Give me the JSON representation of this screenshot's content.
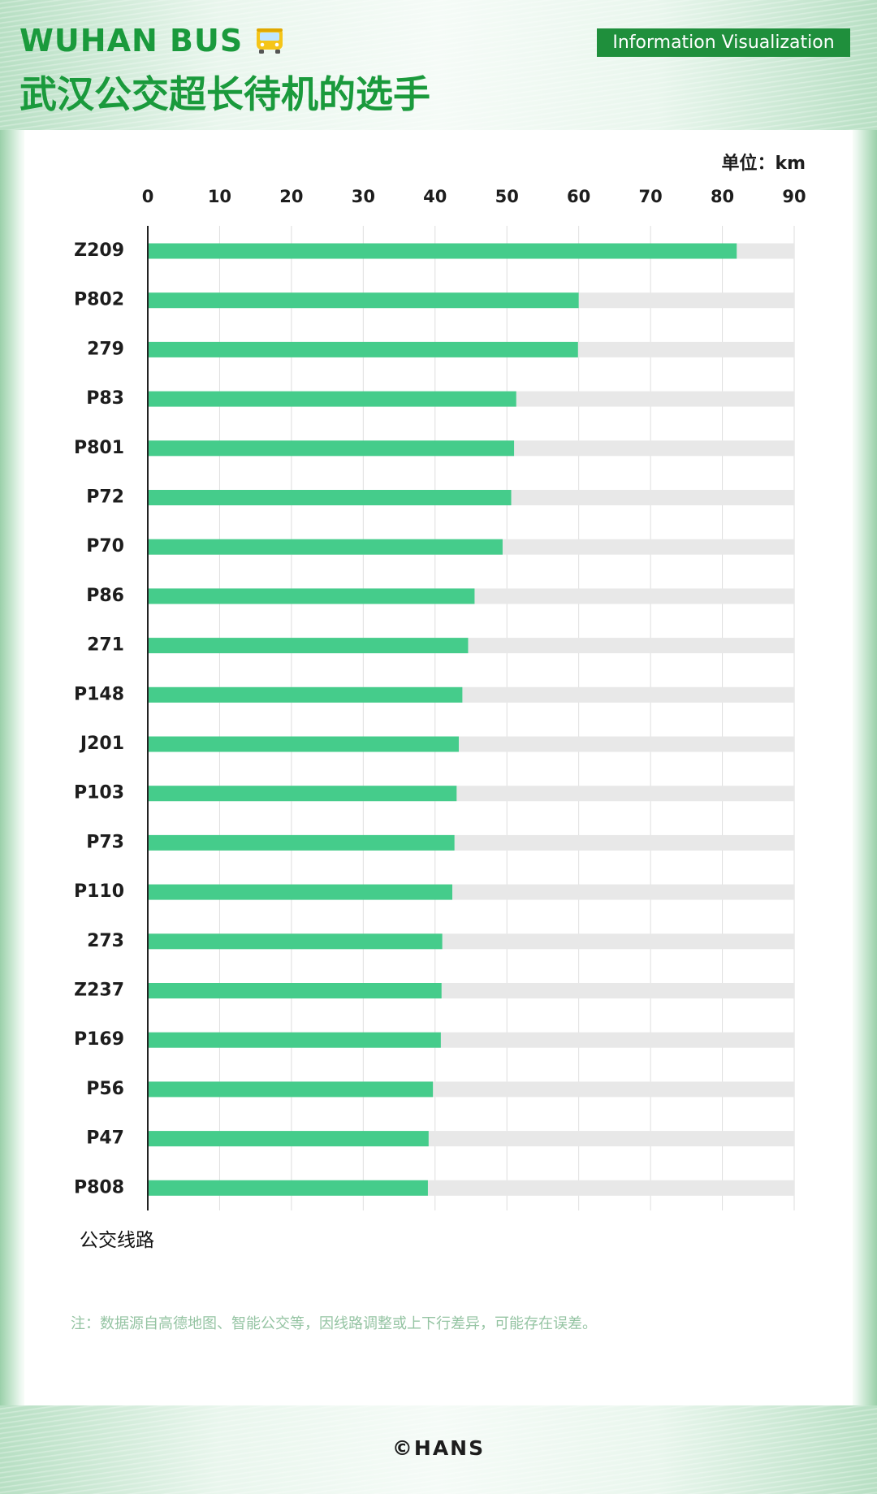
{
  "header": {
    "brand": "WUHAN BUS",
    "title": "武汉公交超长待机的选手",
    "tag": "Information Visualization"
  },
  "chart_data": {
    "type": "bar",
    "orientation": "horizontal",
    "unit_label": "单位：km",
    "ylabel": "公交线路",
    "xlim": [
      0,
      90
    ],
    "x_ticks": [
      0,
      10,
      20,
      30,
      40,
      50,
      60,
      70,
      80,
      90
    ],
    "grid": true,
    "categories": [
      "Z209",
      "P802",
      "279",
      "P83",
      "P801",
      "P72",
      "P70",
      "P86",
      "271",
      "P148",
      "J201",
      "P103",
      "P73",
      "P110",
      "273",
      "Z237",
      "P169",
      "P56",
      "P47",
      "P808"
    ],
    "values": [
      82,
      60,
      59.9,
      51.3,
      51,
      50.6,
      49.4,
      45.5,
      44.6,
      43.8,
      43.3,
      43,
      42.7,
      42.4,
      41,
      40.9,
      40.8,
      39.7,
      39.1,
      39
    ],
    "bar_color": "#45cc8b",
    "track_color": "#e8e8e8"
  },
  "note": "注：数据源自高德地图、智能公交等，因线路调整或上下行差异，可能存在误差。",
  "footer": "©HANS"
}
